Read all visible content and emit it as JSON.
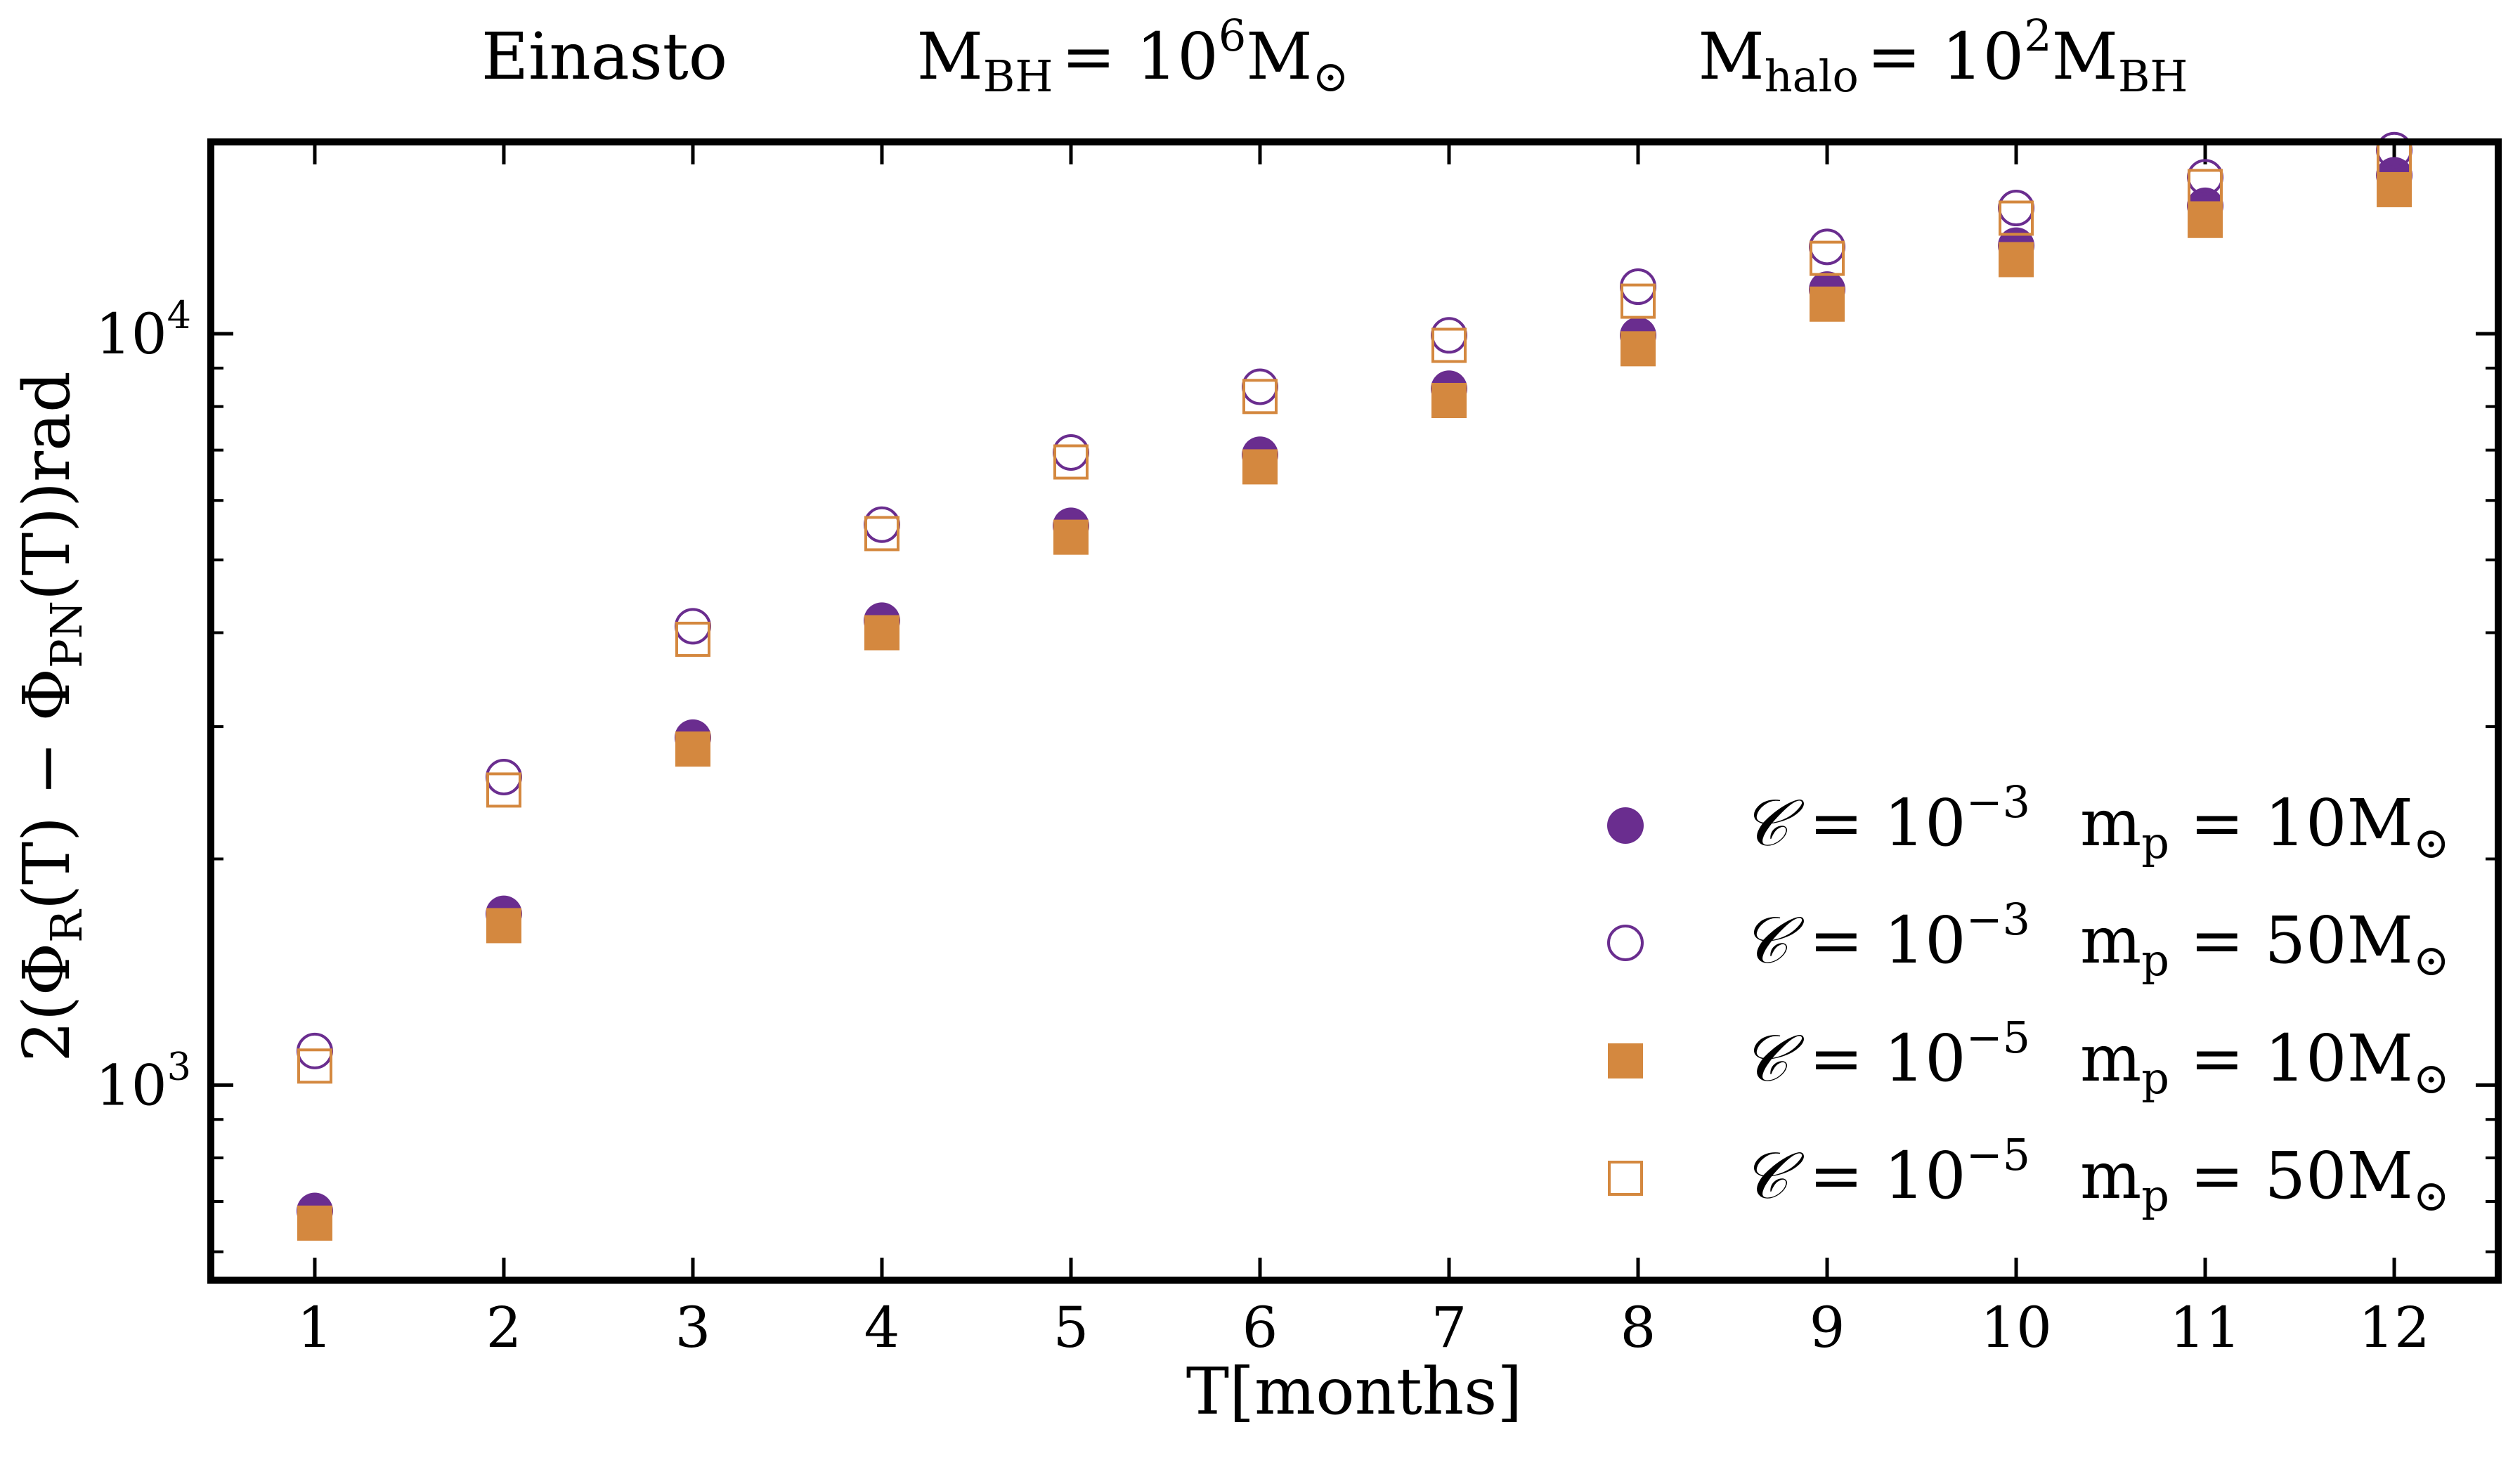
{
  "chart_data": {
    "type": "scatter",
    "header": {
      "profile": "Einasto",
      "mbh": {
        "base": "M",
        "sub": "BH",
        "rhs": "= 10",
        "exp": "6",
        "unit": "M",
        "unit_sub": "⊙"
      },
      "mhalo": {
        "base": "M",
        "sub": "halo",
        "rhs": "= 10",
        "exp": "2",
        "unit": "M",
        "unit_sub": "BH"
      }
    },
    "xlabel": "T[months]",
    "ylabel": "2(Φ_R(T) − Φ_PN(T))rad",
    "ylabel_parts": {
      "pre": "2(Φ",
      "sub1": "R",
      "mid": "(T) − Φ",
      "sub2": "PN",
      "post": "(T))rad"
    },
    "x_scale": "linear",
    "y_scale": "log",
    "xlim": [
      0.45,
      12.55
    ],
    "ylim": [
      550,
      18000
    ],
    "x_ticks": [
      1,
      2,
      3,
      4,
      5,
      6,
      7,
      8,
      9,
      10,
      11,
      12
    ],
    "x_tick_labels": [
      "1",
      "2",
      "3",
      "4",
      "5",
      "6",
      "7",
      "8",
      "9",
      "10",
      "11",
      "12"
    ],
    "y_major_ticks": [
      {
        "value": 1000,
        "base": "10",
        "exp": "3"
      },
      {
        "value": 10000,
        "base": "10",
        "exp": "4"
      }
    ],
    "y_minor_ticks": [
      600,
      700,
      800,
      900,
      2000,
      3000,
      4000,
      5000,
      6000,
      7000,
      8000,
      9000
    ],
    "legend_position": "lower-right",
    "colors": {
      "purple": "#6a2d8f",
      "orange": "#d4883f",
      "axis": "#000000"
    },
    "x": [
      1,
      2,
      3,
      4,
      5,
      6,
      7,
      8,
      9,
      10,
      11,
      12
    ],
    "series": [
      {
        "name": "C = 10^-3  m_p = 10M⊙",
        "legend": {
          "c": "𝒞",
          "eq": " = 10",
          "exp": "−3",
          "m": "m",
          "msub": "p",
          "meq": " = 10M",
          "msun": "⊙"
        },
        "marker": "circle",
        "filled": true,
        "color": "#6a2d8f",
        "values": [
          680,
          1690,
          2900,
          4150,
          5550,
          6900,
          8450,
          9950,
          11450,
          13100,
          14800,
          16250
        ]
      },
      {
        "name": "C = 10^-3  m_p = 50M⊙",
        "legend": {
          "c": "𝒞",
          "eq": " = 10",
          "exp": "−3",
          "m": "m",
          "msub": "p",
          "meq": " = 50M",
          "msun": "⊙"
        },
        "marker": "circle",
        "filled": false,
        "color": "#6a2d8f",
        "values": [
          1110,
          2570,
          4080,
          5570,
          6950,
          8500,
          9950,
          11550,
          13050,
          14700,
          16150,
          17550
        ]
      },
      {
        "name": "C = 10^-5  m_p = 10M⊙",
        "legend": {
          "c": "𝒞",
          "eq": " = 10",
          "exp": "−5",
          "m": "m",
          "msub": "p",
          "meq": " = 10M",
          "msun": "⊙"
        },
        "marker": "square",
        "filled": true,
        "color": "#d4883f",
        "values": [
          655,
          1630,
          2800,
          4000,
          5360,
          6650,
          8150,
          9550,
          10950,
          12550,
          14150,
          15550
        ]
      },
      {
        "name": "C = 10^-5  m_p = 50M⊙",
        "legend": {
          "c": "𝒞",
          "eq": " = 10",
          "exp": "−5",
          "m": "m",
          "msub": "p",
          "meq": " = 50M",
          "msun": "⊙"
        },
        "marker": "square",
        "filled": false,
        "color": "#d4883f",
        "values": [
          1060,
          2470,
          3920,
          5420,
          6750,
          8250,
          9650,
          11050,
          12600,
          14250,
          15700,
          17050
        ]
      }
    ]
  }
}
